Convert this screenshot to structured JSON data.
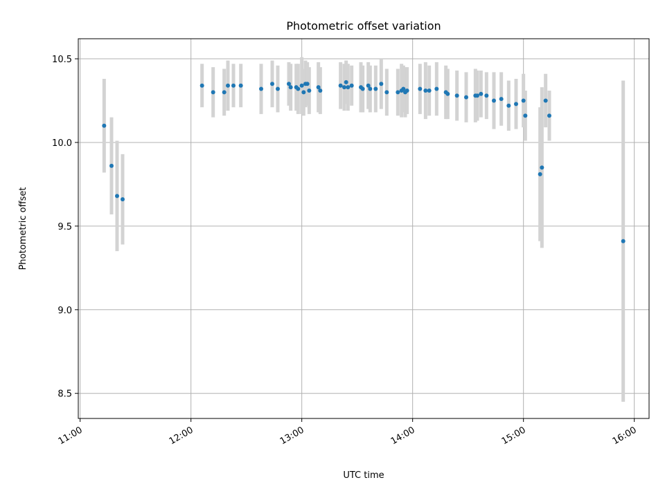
{
  "chart_data": {
    "type": "scatter",
    "title": "Photometric offset variation",
    "xlabel": "UTC time",
    "ylabel": "Photometric offset",
    "xlim": [
      "10:59",
      "16:08"
    ],
    "ylim": [
      8.35,
      10.62
    ],
    "grid": true,
    "x_ticks": [
      "11:00",
      "12:00",
      "13:00",
      "14:00",
      "15:00",
      "16:00"
    ],
    "y_ticks": [
      "8.5",
      "9.0",
      "9.5",
      "10.0",
      "10.5"
    ],
    "colors": {
      "point": "#1f77b4",
      "errorbar": "#d3d3d3",
      "grid": "#b0b0b0"
    },
    "series": [
      {
        "x": [
          "11:13",
          "11:17",
          "11:20",
          "11:23",
          "12:06",
          "12:12",
          "12:18",
          "12:20",
          "12:23",
          "12:27",
          "12:38",
          "12:44",
          "12:47",
          "12:53",
          "12:54",
          "12:57",
          "12:58",
          "13:00",
          "13:01",
          "13:02",
          "13:03",
          "13:04",
          "13:09",
          "13:10",
          "13:21",
          "13:23",
          "13:24",
          "13:25",
          "13:27",
          "13:32",
          "13:33",
          "13:36",
          "13:37",
          "13:40",
          "13:43",
          "13:46",
          "13:52",
          "13:54",
          "13:55",
          "13:56",
          "13:57",
          "14:04",
          "14:07",
          "14:09",
          "14:13",
          "14:18",
          "14:19",
          "14:24",
          "14:29",
          "14:34",
          "14:35",
          "14:37",
          "14:40",
          "14:44",
          "14:48",
          "14:52",
          "14:56",
          "15:00",
          "15:01",
          "15:09",
          "15:10",
          "15:12",
          "15:14",
          "15:54"
        ],
        "y": [
          10.1,
          9.86,
          9.68,
          9.66,
          10.34,
          10.3,
          10.3,
          10.34,
          10.34,
          10.34,
          10.32,
          10.35,
          10.32,
          10.35,
          10.33,
          10.33,
          10.32,
          10.34,
          10.3,
          10.35,
          10.35,
          10.31,
          10.33,
          10.31,
          10.34,
          10.33,
          10.36,
          10.33,
          10.34,
          10.33,
          10.32,
          10.34,
          10.32,
          10.32,
          10.35,
          10.3,
          10.3,
          10.31,
          10.32,
          10.3,
          10.31,
          10.32,
          10.31,
          10.31,
          10.32,
          10.3,
          10.29,
          10.28,
          10.27,
          10.28,
          10.28,
          10.29,
          10.28,
          10.25,
          10.26,
          10.22,
          10.23,
          10.25,
          10.16,
          9.81,
          9.85,
          10.25,
          10.16,
          9.41
        ],
        "err": [
          0.28,
          0.29,
          0.33,
          0.27,
          0.13,
          0.15,
          0.14,
          0.15,
          0.13,
          0.13,
          0.15,
          0.14,
          0.14,
          0.13,
          0.14,
          0.14,
          0.15,
          0.17,
          0.14,
          0.14,
          0.13,
          0.14,
          0.15,
          0.14,
          0.14,
          0.14,
          0.13,
          0.14,
          0.12,
          0.15,
          0.14,
          0.14,
          0.14,
          0.14,
          0.15,
          0.14,
          0.14,
          0.16,
          0.14,
          0.15,
          0.14,
          0.15,
          0.17,
          0.15,
          0.16,
          0.16,
          0.15,
          0.15,
          0.15,
          0.16,
          0.15,
          0.14,
          0.14,
          0.17,
          0.16,
          0.15,
          0.15,
          0.16,
          0.15,
          0.4,
          0.48,
          0.16,
          0.15,
          0.96
        ]
      }
    ]
  }
}
